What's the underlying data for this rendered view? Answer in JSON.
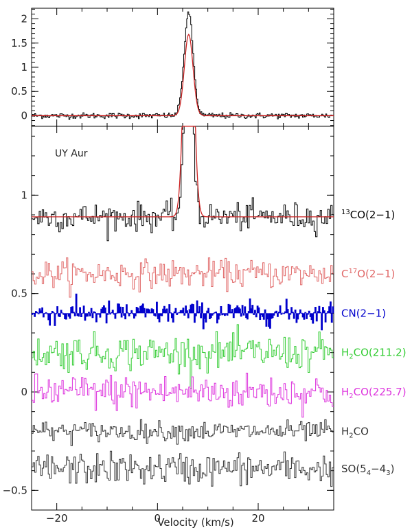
{
  "chart_data": [
    {
      "type": "line",
      "panel": "top",
      "xlim": [
        -25,
        35
      ],
      "ylim": [
        -0.22,
        2.22
      ],
      "y_ticks": [
        0,
        0.5,
        1,
        1.5,
        2
      ],
      "y_tick_labels": [
        "0",
        "0.5",
        "1",
        "1.5",
        "2"
      ],
      "x_ticks": [
        -20,
        0,
        20
      ],
      "x_ticks_minor": [
        -25,
        -15,
        -10,
        -5,
        5,
        10,
        15,
        25,
        30,
        35
      ],
      "series": [
        {
          "kind": "spectrum-step",
          "color": "#000000",
          "baseline": 0,
          "noise_rms": 0.03,
          "peak_center": 6.2,
          "peak_height": 2.12,
          "peak_width": 0.9
        },
        {
          "kind": "gaussian-fit",
          "color": "#cc2222",
          "baseline": 0,
          "center": 6.2,
          "amplitude": 1.68,
          "sigma": 0.85
        }
      ]
    },
    {
      "type": "line",
      "panel": "bottom",
      "xlim": [
        -25,
        35
      ],
      "ylim": [
        -0.6,
        1.35
      ],
      "y_ticks": [
        -0.5,
        0,
        0.5,
        1
      ],
      "y_tick_labels": [
        "−0.5",
        "0",
        "0.5",
        "1"
      ],
      "x_ticks": [
        -20,
        0,
        20
      ],
      "x_tick_labels": [
        "−20",
        "0",
        "20"
      ],
      "x_ticks_minor": [
        -25,
        -15,
        -10,
        -5,
        5,
        10,
        15,
        25,
        30,
        35
      ],
      "xlabel": "Velocity (km/s)",
      "annotation": "UY Aur",
      "series": [
        {
          "name": "13CO(2−1)",
          "label_parts": {
            "pre": "",
            "sup": "13",
            "main": "CO(2−1)",
            "sub": "",
            "rest": ""
          },
          "color": "#000000",
          "offset": 0.89,
          "noise_rms": 0.035,
          "has_peak": true,
          "peak_center": 6.2,
          "peak_height": 1.9,
          "label_y": 0.9
        },
        {
          "name": "13CO(2−1) fit",
          "color": "#cc2222",
          "offset": 0.89,
          "fit": true,
          "center": 6.2,
          "amplitude": 1.6,
          "sigma": 0.85
        },
        {
          "name": "C17O(2−1)",
          "label_parts": {
            "pre": "C",
            "sup": "17",
            "main": "O(2−1)",
            "sub": "",
            "rest": ""
          },
          "color": "#e06666",
          "offset": 0.6,
          "noise_rms": 0.035,
          "label_y": 0.6
        },
        {
          "name": "CN(2−1)",
          "label_parts": {
            "pre": "",
            "sup": "",
            "main": "CN(2−1)",
            "sub": "",
            "rest": ""
          },
          "color": "#0000cc",
          "offset": 0.4,
          "noise_rms": 0.03,
          "filled": true,
          "label_y": 0.4
        },
        {
          "name": "H2CO(211.2)",
          "label_parts": {
            "pre": "H",
            "sup": "",
            "main": "",
            "sub": "2",
            "rest": "CO(211.2)"
          },
          "color": "#33cc33",
          "offset": 0.2,
          "noise_rms": 0.045,
          "label_y": 0.2
        },
        {
          "name": "H2CO(225.7)",
          "label_parts": {
            "pre": "H",
            "sup": "",
            "main": "",
            "sub": "2",
            "rest": "CO(225.7)"
          },
          "color": "#dd33dd",
          "offset": 0.0,
          "noise_rms": 0.045,
          "label_y": 0.0
        },
        {
          "name": "H2CO",
          "label_parts": {
            "pre": "H",
            "sup": "",
            "main": "",
            "sub": "2",
            "rest": "CO"
          },
          "color": "#333333",
          "offset": -0.2,
          "noise_rms": 0.025,
          "label_y": -0.2
        },
        {
          "name": "SO(54−43)",
          "label_parts": {
            "pre": "SO(5",
            "sup": "",
            "main": "",
            "sub": "4",
            "rest": "−4",
            "sub2": "3",
            "rest2": ")"
          },
          "color": "#333333",
          "offset": -0.39,
          "noise_rms": 0.04,
          "label_y": -0.39
        }
      ]
    }
  ]
}
